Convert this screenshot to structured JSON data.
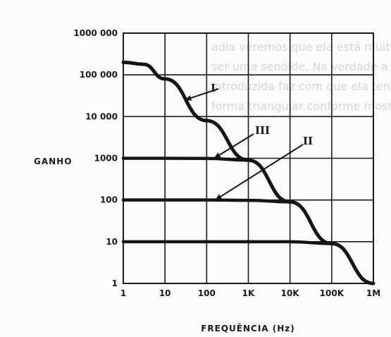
{
  "chart_data": {
    "type": "line",
    "xscale": "log",
    "yscale": "log",
    "xlim": [
      1,
      1000000
    ],
    "ylim": [
      1,
      1000000
    ],
    "grid": true,
    "xlabel": "FREQUÊNCIA (Hz)",
    "ylabel": "GANHO",
    "xtick_values": [
      1,
      10,
      100,
      1000,
      10000,
      100000,
      1000000
    ],
    "xtick_labels": [
      "1",
      "10",
      "100",
      "1K",
      "10K",
      "100K",
      "1M"
    ],
    "ytick_values": [
      1,
      10,
      100,
      1000,
      10000,
      100000,
      1000000
    ],
    "ytick_labels": [
      "1",
      "10",
      "100",
      "1000",
      "10 000",
      "100 000",
      "1000 000"
    ],
    "envelope": {
      "x": [
        1,
        3,
        10,
        100,
        1000,
        10000,
        100000,
        1000000
      ],
      "y": [
        200000,
        180000,
        80000,
        8000,
        900,
        90,
        9,
        1
      ]
    },
    "series": [
      {
        "name": "I",
        "x": [
          1,
          10,
          100,
          1000,
          10000,
          100000,
          1000000
        ],
        "y": [
          10,
          10,
          10,
          10,
          10,
          9,
          1
        ]
      },
      {
        "name": "II",
        "x": [
          1,
          10,
          100,
          1000,
          10000,
          100000,
          1000000
        ],
        "y": [
          100,
          100,
          100,
          98,
          90,
          9,
          1
        ]
      },
      {
        "name": "III",
        "x": [
          1,
          10,
          100,
          1000,
          10000,
          100000,
          1000000
        ],
        "y": [
          1000,
          1000,
          990,
          900,
          90,
          9,
          1
        ]
      }
    ],
    "annotations": [
      {
        "text": "I",
        "target": "envelope"
      },
      {
        "text": "III",
        "target": "series-1000"
      },
      {
        "text": "II",
        "target": "series-100"
      }
    ]
  }
}
